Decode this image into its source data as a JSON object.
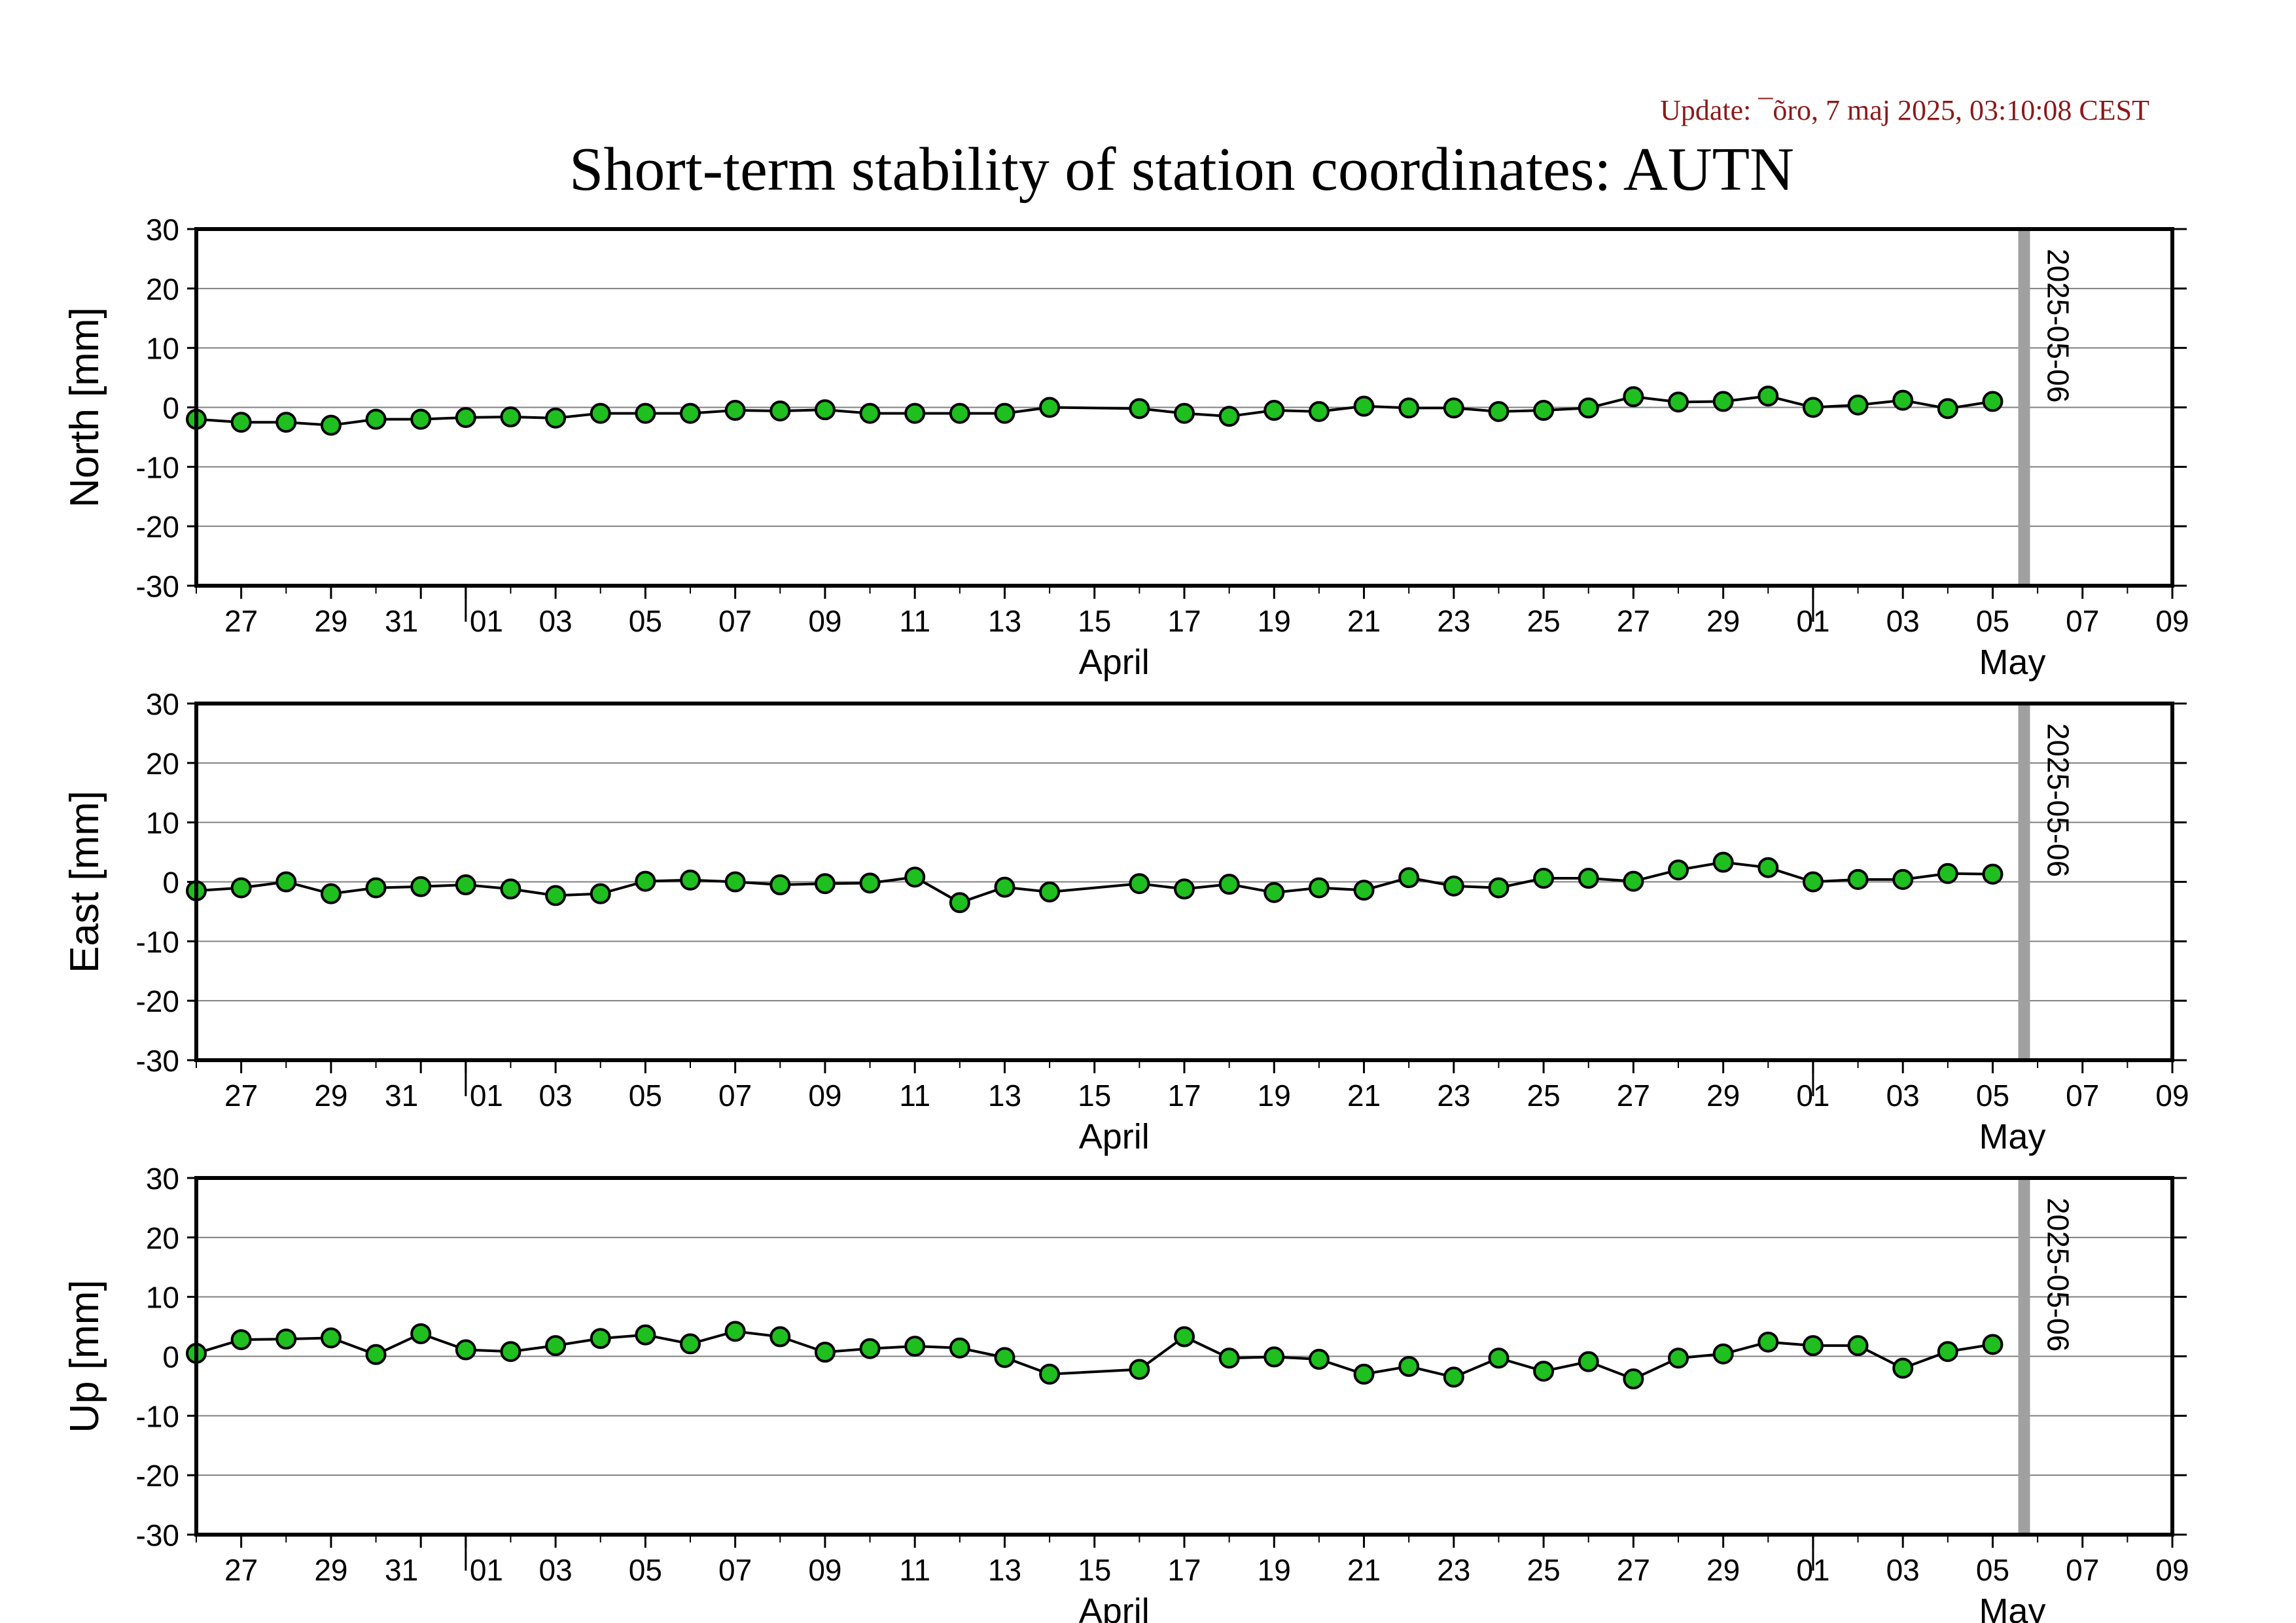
{
  "header": {
    "update": "Update: ¯õro, 7 maj 2025, 03:10:08 CEST",
    "title": "Short-term stability of station coordinates: AUTN"
  },
  "colors": {
    "marker_fill": "#1fbf1f",
    "marker_stroke": "#000000",
    "line": "#000000",
    "grid": "#808080",
    "marker_band": "#a0a0a0",
    "update_text": "#8b1a1a"
  },
  "axis": {
    "x_start": "2025-03-26",
    "x_end": "2025-05-09",
    "ylim": [
      -30,
      30
    ],
    "yticks": [
      "30",
      "20",
      "10",
      "0",
      "-10",
      "-20",
      "-30"
    ],
    "xticks": [
      {
        "date": "2025-03-27",
        "label": "27"
      },
      {
        "date": "2025-03-29",
        "label": "29"
      },
      {
        "date": "2025-03-31",
        "label": "31"
      },
      {
        "date": "2025-04-01",
        "label": "01"
      },
      {
        "date": "2025-04-03",
        "label": "03"
      },
      {
        "date": "2025-04-05",
        "label": "05"
      },
      {
        "date": "2025-04-07",
        "label": "07"
      },
      {
        "date": "2025-04-09",
        "label": "09"
      },
      {
        "date": "2025-04-11",
        "label": "11"
      },
      {
        "date": "2025-04-13",
        "label": "13"
      },
      {
        "date": "2025-04-15",
        "label": "15"
      },
      {
        "date": "2025-04-17",
        "label": "17"
      },
      {
        "date": "2025-04-19",
        "label": "19"
      },
      {
        "date": "2025-04-21",
        "label": "21"
      },
      {
        "date": "2025-04-23",
        "label": "23"
      },
      {
        "date": "2025-04-25",
        "label": "25"
      },
      {
        "date": "2025-04-27",
        "label": "27"
      },
      {
        "date": "2025-04-29",
        "label": "29"
      },
      {
        "date": "2025-05-01",
        "label": "01"
      },
      {
        "date": "2025-05-03",
        "label": "03"
      },
      {
        "date": "2025-05-05",
        "label": "05"
      },
      {
        "date": "2025-05-07",
        "label": "07"
      },
      {
        "date": "2025-05-09",
        "label": "09"
      }
    ],
    "months": [
      {
        "date": "2025-04-15",
        "label": "April"
      },
      {
        "date": "2025-05-05",
        "label": "May"
      }
    ],
    "month_boundaries": [
      "2025-04-01",
      "2025-05-01"
    ],
    "marker_line": {
      "date": "2025-05-06",
      "label": "2025-05-06"
    }
  },
  "chart_data": [
    {
      "type": "scatter",
      "ylabel": "North [mm]",
      "ylim": [
        -30,
        30
      ],
      "grid": true,
      "x": [
        "2025-03-26",
        "2025-03-27",
        "2025-03-28",
        "2025-03-29",
        "2025-03-30",
        "2025-03-31",
        "2025-04-01",
        "2025-04-02",
        "2025-04-03",
        "2025-04-04",
        "2025-04-05",
        "2025-04-06",
        "2025-04-07",
        "2025-04-08",
        "2025-04-09",
        "2025-04-10",
        "2025-04-11",
        "2025-04-12",
        "2025-04-13",
        "2025-04-14",
        "2025-04-16",
        "2025-04-17",
        "2025-04-18",
        "2025-04-19",
        "2025-04-20",
        "2025-04-21",
        "2025-04-22",
        "2025-04-23",
        "2025-04-24",
        "2025-04-25",
        "2025-04-26",
        "2025-04-27",
        "2025-04-28",
        "2025-04-29",
        "2025-04-30",
        "2025-05-01",
        "2025-05-02",
        "2025-05-03",
        "2025-05-04",
        "2025-05-05"
      ],
      "values": [
        -2,
        -2.5,
        -2.5,
        -3,
        -2,
        -2,
        -1.7,
        -1.6,
        -1.8,
        -1,
        -1,
        -1,
        -0.5,
        -0.6,
        -0.4,
        -1,
        -1,
        -1,
        -1,
        0,
        -0.2,
        -1,
        -1.5,
        -0.5,
        -0.7,
        0.2,
        -0.1,
        -0.1,
        -0.7,
        -0.5,
        -0.1,
        1.8,
        0.9,
        1,
        1.9,
        0,
        0.4,
        1.2,
        -0.2,
        1
      ]
    },
    {
      "type": "scatter",
      "ylabel": "East [mm]",
      "ylim": [
        -30,
        30
      ],
      "grid": true,
      "x": [
        "2025-03-26",
        "2025-03-27",
        "2025-03-28",
        "2025-03-29",
        "2025-03-30",
        "2025-03-31",
        "2025-04-01",
        "2025-04-02",
        "2025-04-03",
        "2025-04-04",
        "2025-04-05",
        "2025-04-06",
        "2025-04-07",
        "2025-04-08",
        "2025-04-09",
        "2025-04-10",
        "2025-04-11",
        "2025-04-12",
        "2025-04-13",
        "2025-04-14",
        "2025-04-16",
        "2025-04-17",
        "2025-04-18",
        "2025-04-19",
        "2025-04-20",
        "2025-04-21",
        "2025-04-22",
        "2025-04-23",
        "2025-04-24",
        "2025-04-25",
        "2025-04-26",
        "2025-04-27",
        "2025-04-28",
        "2025-04-29",
        "2025-04-30",
        "2025-05-01",
        "2025-05-02",
        "2025-05-03",
        "2025-05-04",
        "2025-05-05"
      ],
      "values": [
        -1.5,
        -1,
        0,
        -2,
        -1,
        -0.8,
        -0.5,
        -1.2,
        -2.3,
        -2,
        0.1,
        0.3,
        0,
        -0.5,
        -0.3,
        -0.2,
        0.8,
        -3.5,
        -0.9,
        -1.7,
        -0.3,
        -1.2,
        -0.4,
        -1.8,
        -1,
        -1.4,
        0.7,
        -0.7,
        -1,
        0.6,
        0.6,
        0.1,
        2,
        3.3,
        2.4,
        0,
        0.4,
        0.4,
        1.4,
        1.3
      ]
    },
    {
      "type": "scatter",
      "ylabel": "Up [mm]",
      "ylim": [
        -30,
        30
      ],
      "grid": true,
      "x": [
        "2025-03-26",
        "2025-03-27",
        "2025-03-28",
        "2025-03-29",
        "2025-03-30",
        "2025-03-31",
        "2025-04-01",
        "2025-04-02",
        "2025-04-03",
        "2025-04-04",
        "2025-04-05",
        "2025-04-06",
        "2025-04-07",
        "2025-04-08",
        "2025-04-09",
        "2025-04-10",
        "2025-04-11",
        "2025-04-12",
        "2025-04-13",
        "2025-04-14",
        "2025-04-16",
        "2025-04-17",
        "2025-04-18",
        "2025-04-19",
        "2025-04-20",
        "2025-04-21",
        "2025-04-22",
        "2025-04-23",
        "2025-04-24",
        "2025-04-25",
        "2025-04-26",
        "2025-04-27",
        "2025-04-28",
        "2025-04-29",
        "2025-04-30",
        "2025-05-01",
        "2025-05-02",
        "2025-05-03",
        "2025-05-04",
        "2025-05-05"
      ],
      "values": [
        0.5,
        2.8,
        2.9,
        3.1,
        0.3,
        3.8,
        1.1,
        0.8,
        1.8,
        3,
        3.6,
        2.1,
        4.2,
        3.3,
        0.7,
        1.3,
        1.7,
        1.4,
        -0.2,
        -3,
        -2.2,
        3.3,
        -0.3,
        -0.1,
        -0.5,
        -3,
        -1.7,
        -3.5,
        -0.3,
        -2.5,
        -0.9,
        -3.8,
        -0.3,
        0.4,
        2.4,
        1.8,
        1.8,
        -2,
        0.8,
        2
      ]
    }
  ]
}
